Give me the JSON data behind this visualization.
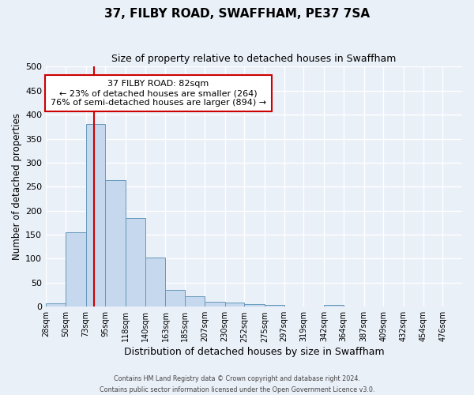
{
  "title": "37, FILBY ROAD, SWAFFHAM, PE37 7SA",
  "subtitle": "Size of property relative to detached houses in Swaffham",
  "xlabel": "Distribution of detached houses by size in Swaffham",
  "ylabel": "Number of detached properties",
  "bin_labels": [
    "28sqm",
    "50sqm",
    "73sqm",
    "95sqm",
    "118sqm",
    "140sqm",
    "163sqm",
    "185sqm",
    "207sqm",
    "230sqm",
    "252sqm",
    "275sqm",
    "297sqm",
    "319sqm",
    "342sqm",
    "364sqm",
    "387sqm",
    "409sqm",
    "432sqm",
    "454sqm",
    "476sqm"
  ],
  "bin_edges": [
    28,
    50,
    73,
    95,
    118,
    140,
    163,
    185,
    207,
    230,
    252,
    275,
    297,
    319,
    342,
    364,
    387,
    409,
    432,
    454,
    476
  ],
  "bar_heights": [
    7,
    155,
    380,
    263,
    185,
    102,
    35,
    21,
    10,
    8,
    5,
    3,
    0,
    0,
    4,
    0,
    0,
    0,
    0,
    0
  ],
  "bar_color": "#c5d8ed",
  "bar_edge_color": "#6699bb",
  "property_size": 82,
  "red_line_color": "#cc0000",
  "annotation_line1": "37 FILBY ROAD: 82sqm",
  "annotation_line2": "← 23% of detached houses are smaller (264)",
  "annotation_line3": "76% of semi-detached houses are larger (894) →",
  "annotation_box_color": "#ffffff",
  "annotation_box_edge_color": "#cc0000",
  "ylim": [
    0,
    500
  ],
  "yticks": [
    0,
    50,
    100,
    150,
    200,
    250,
    300,
    350,
    400,
    450,
    500
  ],
  "bg_color": "#eaf0f8",
  "grid_color": "#ffffff",
  "footer_line1": "Contains HM Land Registry data © Crown copyright and database right 2024.",
  "footer_line2": "Contains public sector information licensed under the Open Government Licence v3.0."
}
